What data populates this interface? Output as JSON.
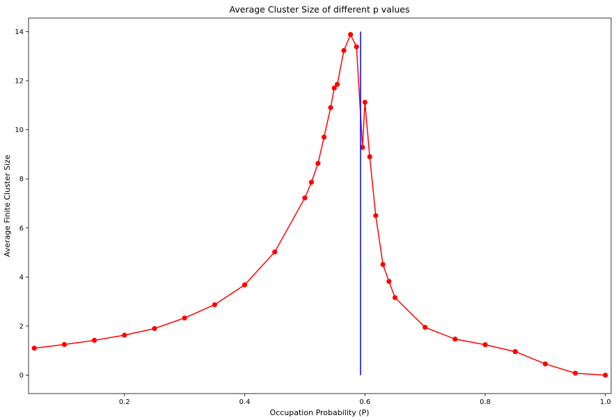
{
  "chart_data": {
    "type": "line",
    "title": "Average Cluster Size of different p values",
    "xlabel": "Occupation Probability (P)",
    "ylabel": "Average Finite Cluster Size",
    "xlim": [
      0.0405,
      1.0095
    ],
    "ylim": [
      -0.75,
      14.55
    ],
    "xticks": [
      0.2,
      0.4,
      0.6,
      0.8,
      1.0
    ],
    "xtick_labels": [
      "0.2",
      "0.4",
      "0.6",
      "0.8",
      "1.0"
    ],
    "yticks": [
      0,
      2,
      4,
      6,
      8,
      10,
      12,
      14
    ],
    "ytick_labels": [
      "0",
      "2",
      "4",
      "6",
      "8",
      "10",
      "12",
      "14"
    ],
    "grid": false,
    "series": [
      {
        "color": "#ff0000",
        "marker": "circle",
        "x": [
          0.05,
          0.1,
          0.15,
          0.2,
          0.25,
          0.3,
          0.35,
          0.4,
          0.45,
          0.5,
          0.511,
          0.522,
          0.532,
          0.543,
          0.549,
          0.554,
          0.565,
          0.576,
          0.586,
          0.596,
          0.6,
          0.608,
          0.618,
          0.63,
          0.64,
          0.65,
          0.7,
          0.75,
          0.8,
          0.85,
          0.9,
          0.95,
          1.0
        ],
        "y": [
          1.1,
          1.25,
          1.42,
          1.63,
          1.9,
          2.33,
          2.87,
          3.68,
          5.02,
          7.22,
          7.86,
          8.63,
          9.7,
          10.9,
          11.7,
          11.85,
          13.23,
          13.88,
          13.38,
          9.28,
          11.12,
          8.9,
          6.5,
          4.51,
          3.82,
          3.16,
          1.95,
          1.47,
          1.24,
          0.96,
          0.46,
          0.08,
          0.0
        ]
      },
      {
        "color": "#0000ff",
        "marker": "none",
        "x": [
          0.5927,
          0.5927
        ],
        "y": [
          0,
          14
        ]
      }
    ]
  }
}
